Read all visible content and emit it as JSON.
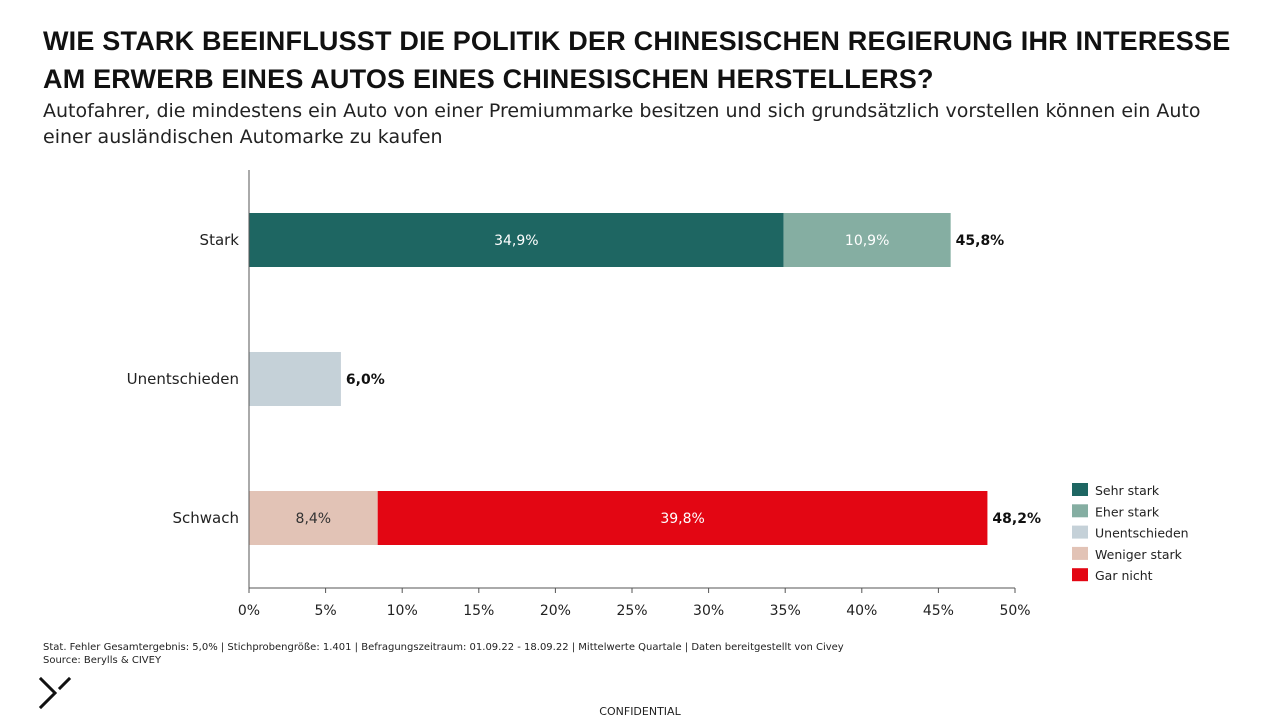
{
  "header": {
    "title": "WIE STARK BEEINFLUSST DIE POLITIK DER CHINESISCHEN REGIERUNG IHR INTERESSE AM ERWERB EINES AUTOS EINES CHINESISCHEN HERSTELLERS?",
    "subtitle": "Autofahrer, die mindestens ein Auto von einer Premiummarke besitzen und sich grundsätzlich vorstellen können ein Auto einer ausländischen Automarke zu kaufen"
  },
  "chart_data": {
    "type": "bar",
    "orientation": "horizontal",
    "stacked": true,
    "categories": [
      "Stark",
      "Unentschieden",
      "Schwach"
    ],
    "series": [
      {
        "name": "Sehr stark",
        "color": "#1e6662",
        "values": [
          34.9,
          0,
          0
        ],
        "labels": [
          "34,9%",
          "",
          ""
        ]
      },
      {
        "name": "Eher stark",
        "color": "#85aea2",
        "values": [
          10.9,
          0,
          0
        ],
        "labels": [
          "10,9%",
          "",
          ""
        ]
      },
      {
        "name": "Unentschieden",
        "color": "#c5d1d8",
        "values": [
          0,
          6.0,
          0
        ],
        "labels": [
          "",
          "",
          ""
        ]
      },
      {
        "name": "Weniger stark",
        "color": "#e2c3b6",
        "values": [
          0,
          0,
          8.4
        ],
        "labels": [
          "",
          "",
          "8,4%"
        ]
      },
      {
        "name": "Gar nicht",
        "color": "#e30613",
        "values": [
          0,
          0,
          39.8
        ],
        "labels": [
          "",
          "",
          "39,8%"
        ]
      }
    ],
    "totals": [
      "45,8%",
      "6,0%",
      "48,2%"
    ],
    "xlim": [
      0,
      50
    ],
    "xticks": [
      0,
      5,
      10,
      15,
      20,
      25,
      30,
      35,
      40,
      45,
      50
    ],
    "xtick_labels": [
      "0%",
      "5%",
      "10%",
      "15%",
      "20%",
      "25%",
      "30%",
      "35%",
      "40%",
      "45%",
      "50%"
    ],
    "legend_position": "bottom-right",
    "grid": false
  },
  "footer": {
    "note": "Stat. Fehler Gesamtergebnis: 5,0% | Stichprobengröße: 1.401 | Befragungszeitraum: 01.09.22 - 18.09.22 | Mittelwerte Quartale | Daten bereitgestellt von Civey",
    "source": "Source: Berylls & CIVEY",
    "confidential": "CONFIDENTIAL"
  },
  "logo": {
    "icon": "berylls-logo-icon"
  }
}
